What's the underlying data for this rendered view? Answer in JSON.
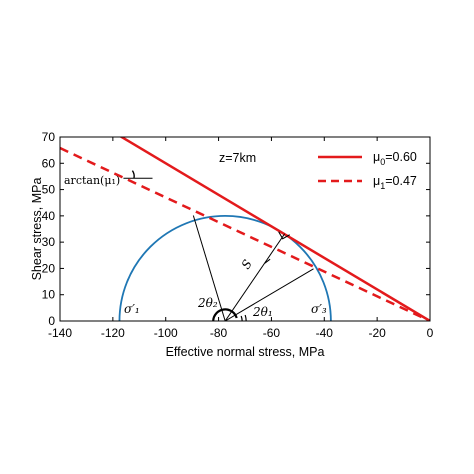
{
  "chart_data": {
    "type": "line",
    "title": "",
    "xlabel": "Effective normal stress, MPa",
    "ylabel": "Shear stress, MPa",
    "xlim": [
      -140,
      0
    ],
    "ylim": [
      0,
      70
    ],
    "xticks": [
      -140,
      -120,
      -100,
      -80,
      -60,
      -40,
      -20,
      0
    ],
    "yticks": [
      0,
      10,
      20,
      30,
      40,
      50,
      60,
      70
    ],
    "grid": false,
    "legend_position": "top-right",
    "series": [
      {
        "name": "μ0=0.60",
        "legend_base": "μ",
        "legend_sub": "0",
        "legend_rest": "=0.60",
        "style": "solid",
        "color": "#e31a1c",
        "slope": -0.6,
        "x": [
          -140,
          0
        ],
        "y": [
          84,
          0
        ]
      },
      {
        "name": "μ1=0.47",
        "legend_base": "μ",
        "legend_sub": "1",
        "legend_rest": "=0.47",
        "style": "dashed",
        "color": "#e31a1c",
        "slope": -0.47,
        "x": [
          -140,
          0
        ],
        "y": [
          65.8,
          0
        ]
      }
    ],
    "mohr_circle": {
      "center": -77.5,
      "radius": 40,
      "color": "#1f77b4"
    },
    "annotations": {
      "depth": "z=7km",
      "arctan_label": "arctan(μ₁)",
      "sigma1_label": "σ′₁",
      "sigma3_label": "σ′₃",
      "two_theta1": "2θ₁",
      "two_theta2": "2θ₂",
      "s_label": "S"
    }
  }
}
